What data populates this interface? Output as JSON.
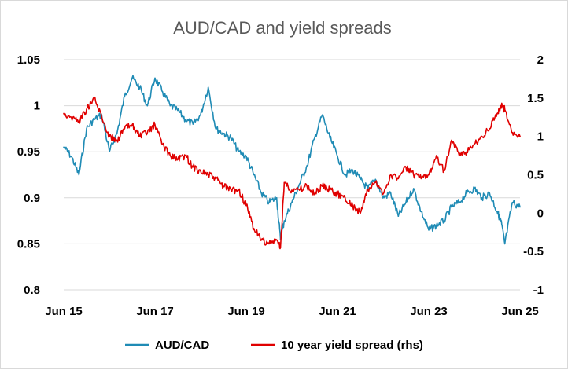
{
  "chart_data": {
    "type": "line",
    "title": "AUD/CAD and yield spreads",
    "xlabel": "",
    "ylabel": "",
    "x_tick_labels": [
      "Jun 15",
      "Jun 17",
      "Jun 19",
      "Jun 21",
      "Jun 23",
      "Jun 25"
    ],
    "x_ticks": [
      "2015-06",
      "2017-06",
      "2019-06",
      "2021-06",
      "2023-06",
      "2025-06"
    ],
    "xlim": [
      "2015-06",
      "2025-06"
    ],
    "y_left": {
      "ylim": [
        0.8,
        1.05
      ],
      "tick_labels": [
        "0.8",
        "0.85",
        "0.9",
        "0.95",
        "1",
        "1.05"
      ],
      "ticks": [
        0.8,
        0.85,
        0.9,
        0.95,
        1.0,
        1.05
      ]
    },
    "y_right": {
      "ylim": [
        -1,
        2
      ],
      "tick_labels": [
        "-1",
        "-0.5",
        "0",
        "0.5",
        "1",
        "1.5",
        "2"
      ],
      "ticks": [
        -1,
        -0.5,
        0,
        0.5,
        1,
        1.5,
        2
      ]
    },
    "grid": "horizontal",
    "legend_position": "bottom",
    "series": [
      {
        "name": "AUD/CAD",
        "axis": "left",
        "color": "#1f8bb5",
        "x": [
          "2015-06",
          "2015-08",
          "2015-10",
          "2015-12",
          "2016-02",
          "2016-04",
          "2016-06",
          "2016-08",
          "2016-10",
          "2016-12",
          "2017-02",
          "2017-04",
          "2017-06",
          "2017-08",
          "2017-10",
          "2017-12",
          "2018-02",
          "2018-04",
          "2018-06",
          "2018-08",
          "2018-10",
          "2018-12",
          "2019-02",
          "2019-04",
          "2019-06",
          "2019-08",
          "2019-10",
          "2019-12",
          "2020-02",
          "2020-03",
          "2020-04",
          "2020-06",
          "2020-08",
          "2020-10",
          "2020-12",
          "2021-02",
          "2021-04",
          "2021-06",
          "2021-08",
          "2021-10",
          "2021-12",
          "2022-02",
          "2022-04",
          "2022-06",
          "2022-08",
          "2022-10",
          "2022-12",
          "2023-02",
          "2023-04",
          "2023-06",
          "2023-08",
          "2023-10",
          "2023-12",
          "2024-02",
          "2024-04",
          "2024-06",
          "2024-08",
          "2024-10",
          "2024-12",
          "2025-01",
          "2025-02",
          "2025-04",
          "2025-06"
        ],
        "y": [
          0.955,
          0.945,
          0.925,
          0.975,
          0.985,
          0.99,
          0.95,
          0.97,
          1.01,
          1.03,
          1.02,
          1.0,
          1.03,
          1.015,
          1.0,
          0.995,
          0.985,
          0.98,
          0.99,
          1.02,
          0.975,
          0.97,
          0.965,
          0.95,
          0.945,
          0.925,
          0.905,
          0.895,
          0.9,
          0.855,
          0.875,
          0.895,
          0.915,
          0.935,
          0.965,
          0.99,
          0.965,
          0.945,
          0.925,
          0.93,
          0.92,
          0.91,
          0.92,
          0.9,
          0.905,
          0.88,
          0.895,
          0.91,
          0.885,
          0.865,
          0.87,
          0.875,
          0.89,
          0.895,
          0.905,
          0.91,
          0.9,
          0.905,
          0.885,
          0.875,
          0.85,
          0.895,
          0.89
        ]
      },
      {
        "name": "10 year yield spread (rhs)",
        "axis": "right",
        "color": "#e00000",
        "x": [
          "2015-06",
          "2015-08",
          "2015-10",
          "2015-12",
          "2016-02",
          "2016-04",
          "2016-06",
          "2016-08",
          "2016-10",
          "2016-12",
          "2017-02",
          "2017-04",
          "2017-06",
          "2017-08",
          "2017-10",
          "2017-12",
          "2018-02",
          "2018-04",
          "2018-06",
          "2018-08",
          "2018-10",
          "2018-12",
          "2019-02",
          "2019-04",
          "2019-06",
          "2019-08",
          "2019-10",
          "2019-12",
          "2020-02",
          "2020-03",
          "2020-04",
          "2020-06",
          "2020-08",
          "2020-10",
          "2020-12",
          "2021-02",
          "2021-04",
          "2021-06",
          "2021-08",
          "2021-10",
          "2021-12",
          "2022-02",
          "2022-04",
          "2022-06",
          "2022-08",
          "2022-10",
          "2022-12",
          "2023-02",
          "2023-04",
          "2023-06",
          "2023-08",
          "2023-10",
          "2023-12",
          "2024-02",
          "2024-04",
          "2024-06",
          "2024-08",
          "2024-10",
          "2024-12",
          "2025-01",
          "2025-02",
          "2025-04",
          "2025-06"
        ],
        "y": [
          1.3,
          1.25,
          1.2,
          1.35,
          1.5,
          1.25,
          1.0,
          0.95,
          1.1,
          1.15,
          1.0,
          1.05,
          1.15,
          0.9,
          0.75,
          0.7,
          0.75,
          0.6,
          0.55,
          0.5,
          0.45,
          0.35,
          0.3,
          0.3,
          0.1,
          -0.2,
          -0.35,
          -0.4,
          -0.35,
          -0.45,
          0.4,
          0.3,
          0.3,
          0.35,
          0.25,
          0.35,
          0.3,
          0.25,
          0.2,
          0.1,
          0.0,
          0.3,
          0.4,
          0.25,
          0.5,
          0.45,
          0.6,
          0.5,
          0.45,
          0.5,
          0.75,
          0.55,
          0.95,
          0.75,
          0.8,
          0.9,
          1.0,
          1.1,
          1.3,
          1.4,
          1.35,
          1.05,
          1.0
        ]
      }
    ]
  }
}
